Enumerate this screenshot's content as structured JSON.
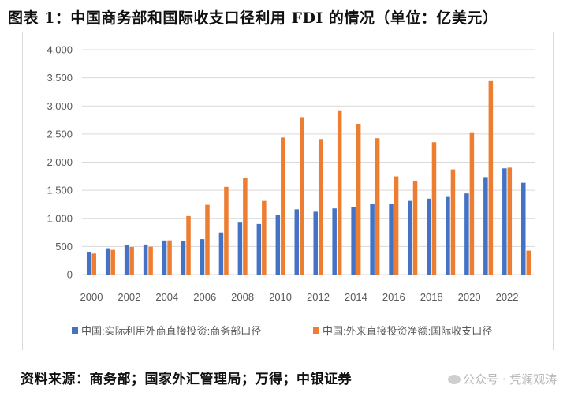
{
  "title": "图表 1：中国商务部和国际收支口径利用 FDI 的情况（单位：亿美元）",
  "source": "资料来源：商务部；国家外汇管理局；万得；中银证券",
  "watermark": "公众号 · 凭澜观涛",
  "colors": {
    "series1": "#4472C4",
    "series2": "#ED7D31",
    "grid": "#d9d9d9"
  },
  "chart_data": {
    "type": "bar",
    "categories": [
      2000,
      2001,
      2002,
      2003,
      2004,
      2005,
      2006,
      2007,
      2008,
      2009,
      2010,
      2011,
      2012,
      2013,
      2014,
      2015,
      2016,
      2017,
      2018,
      2019,
      2020,
      2021,
      2022,
      2023
    ],
    "x_tick_labels": [
      "2000",
      "2002",
      "2004",
      "2006",
      "2008",
      "2010",
      "2012",
      "2014",
      "2016",
      "2018",
      "2020",
      "2022"
    ],
    "y_tick_labels": [
      "0",
      "500",
      "1,000",
      "1,500",
      "2,000",
      "2,500",
      "3,000",
      "3,500",
      "4,000"
    ],
    "ylim": [
      0,
      4000
    ],
    "grid": true,
    "legend_position": "bottom",
    "series": [
      {
        "name": "中国:实际利用外商直接投资:商务部口径",
        "values": [
          407,
          469,
          527,
          535,
          606,
          603,
          630,
          748,
          924,
          900,
          1057,
          1160,
          1117,
          1176,
          1196,
          1263,
          1260,
          1310,
          1350,
          1381,
          1443,
          1735,
          1891,
          1633
        ]
      },
      {
        "name": "中国:外来直接投资净额:国际收支口径",
        "values": [
          375,
          440,
          491,
          496,
          608,
          1040,
          1241,
          1561,
          1715,
          1310,
          2437,
          2801,
          2410,
          2909,
          2681,
          2425,
          1747,
          1660,
          2354,
          1872,
          2531,
          3441,
          1903,
          427
        ]
      }
    ]
  }
}
